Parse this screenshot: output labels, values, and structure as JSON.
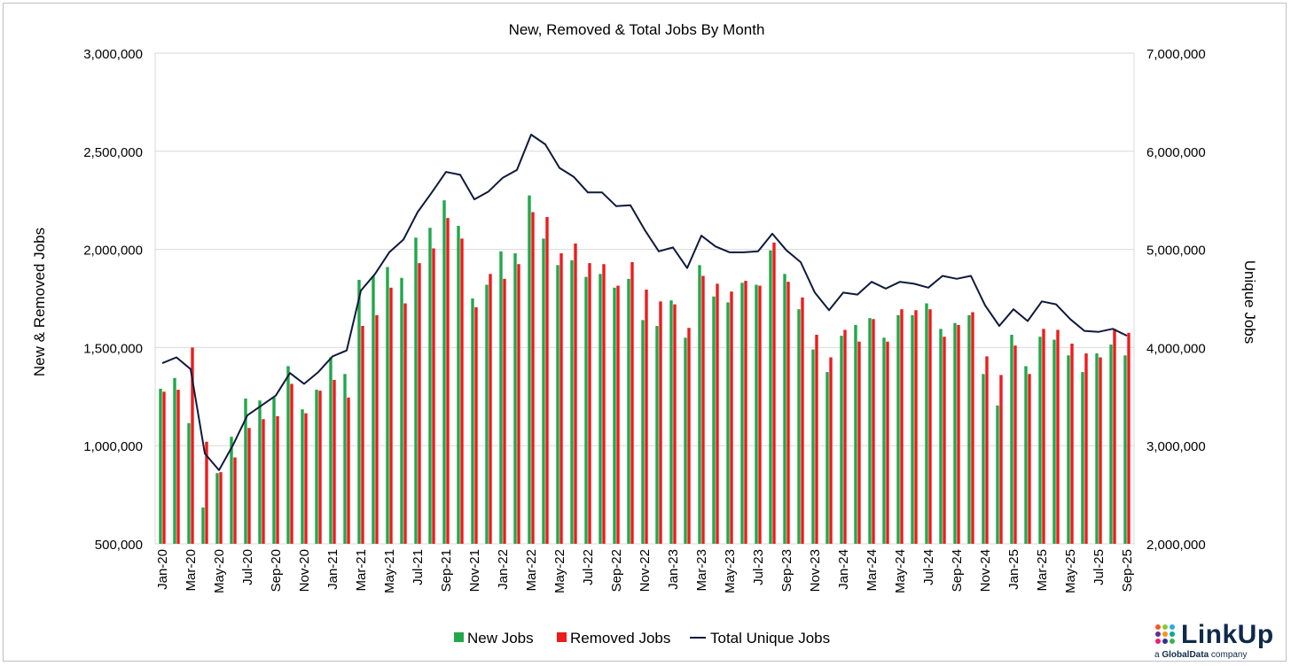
{
  "chart_data": {
    "type": "bar",
    "title": "New, Removed & Total Jobs By Month",
    "ylabel": "New & Removed Jobs",
    "y2label": "Unique Jobs",
    "ylim": [
      500000,
      3000000
    ],
    "y2lim": [
      2000000,
      7000000
    ],
    "yticks": [
      "500,000",
      "1,000,000",
      "1,500,000",
      "2,000,000",
      "2,500,000",
      "3,000,000"
    ],
    "y2ticks": [
      "2,000,000",
      "3,000,000",
      "4,000,000",
      "5,000,000",
      "6,000,000",
      "7,000,000"
    ],
    "grid": true,
    "legend_position": "bottom",
    "months": [
      "Jan-20",
      "Feb-20",
      "Mar-20",
      "Apr-20",
      "May-20",
      "Jun-20",
      "Jul-20",
      "Aug-20",
      "Sep-20",
      "Oct-20",
      "Nov-20",
      "Dec-20",
      "Jan-21",
      "Feb-21",
      "Mar-21",
      "Apr-21",
      "May-21",
      "Jun-21",
      "Jul-21",
      "Aug-21",
      "Sep-21",
      "Oct-21",
      "Nov-21",
      "Dec-21",
      "Jan-22",
      "Feb-22",
      "Mar-22",
      "Apr-22",
      "May-22",
      "Jun-22",
      "Jul-22",
      "Aug-22",
      "Sep-22",
      "Oct-22",
      "Nov-22",
      "Dec-22",
      "Jan-23",
      "Feb-23",
      "Mar-23",
      "Apr-23",
      "May-23",
      "Jun-23",
      "Jul-23",
      "Aug-23",
      "Sep-23",
      "Oct-23",
      "Nov-23",
      "Dec-23",
      "Jan-24",
      "Feb-24",
      "Mar-24",
      "Apr-24",
      "May-24",
      "Jun-24",
      "Jul-24",
      "Aug-24",
      "Sep-24",
      "Oct-24",
      "Nov-24",
      "Dec-24",
      "Jan-25",
      "Feb-25",
      "Mar-25",
      "Apr-25",
      "May-25",
      "Jun-25",
      "Jul-25",
      "Aug-25",
      "Sep-25"
    ],
    "series": [
      {
        "name": "New Jobs",
        "kind": "bar",
        "axis": "left",
        "color": "#21a84a",
        "values": [
          1290000,
          1345000,
          1115000,
          685000,
          860000,
          1045000,
          1240000,
          1230000,
          1245000,
          1405000,
          1185000,
          1285000,
          1450000,
          1365000,
          1845000,
          1865000,
          1910000,
          1855000,
          2060000,
          2110000,
          2250000,
          2120000,
          1750000,
          1820000,
          1990000,
          1980000,
          2275000,
          2055000,
          1920000,
          1945000,
          1860000,
          1875000,
          1805000,
          1850000,
          1640000,
          1610000,
          1740000,
          1550000,
          1920000,
          1760000,
          1730000,
          1830000,
          1820000,
          1995000,
          1875000,
          1695000,
          1490000,
          1375000,
          1560000,
          1615000,
          1650000,
          1550000,
          1665000,
          1665000,
          1725000,
          1595000,
          1625000,
          1665000,
          1365000,
          1205000,
          1565000,
          1405000,
          1555000,
          1540000,
          1460000,
          1375000,
          1470000,
          1515000,
          1460000
        ]
      },
      {
        "name": "Removed Jobs",
        "kind": "bar",
        "axis": "left",
        "color": "#ee1c1c",
        "values": [
          1275000,
          1285000,
          1500000,
          1020000,
          865000,
          940000,
          1090000,
          1135000,
          1150000,
          1315000,
          1165000,
          1280000,
          1335000,
          1245000,
          1610000,
          1665000,
          1805000,
          1725000,
          1930000,
          2005000,
          2160000,
          2055000,
          1705000,
          1875000,
          1850000,
          1925000,
          2190000,
          2165000,
          1980000,
          2030000,
          1930000,
          1925000,
          1815000,
          1935000,
          1795000,
          1735000,
          1720000,
          1600000,
          1865000,
          1825000,
          1785000,
          1840000,
          1815000,
          2035000,
          1835000,
          1755000,
          1565000,
          1450000,
          1590000,
          1530000,
          1645000,
          1530000,
          1695000,
          1690000,
          1695000,
          1555000,
          1615000,
          1680000,
          1455000,
          1360000,
          1510000,
          1365000,
          1595000,
          1590000,
          1520000,
          1470000,
          1450000,
          1595000,
          1575000
        ]
      },
      {
        "name": "Total Unique Jobs",
        "kind": "line",
        "axis": "right",
        "color": "#0f1a3c",
        "values": [
          3840000,
          3900000,
          3780000,
          2920000,
          2750000,
          3010000,
          3310000,
          3410000,
          3510000,
          3740000,
          3630000,
          3750000,
          3910000,
          3970000,
          4580000,
          4750000,
          4970000,
          5100000,
          5380000,
          5580000,
          5790000,
          5760000,
          5510000,
          5590000,
          5730000,
          5810000,
          6170000,
          6070000,
          5830000,
          5740000,
          5580000,
          5580000,
          5440000,
          5450000,
          5200000,
          4980000,
          5020000,
          4810000,
          5140000,
          5030000,
          4970000,
          4970000,
          4980000,
          5160000,
          4990000,
          4870000,
          4560000,
          4380000,
          4560000,
          4540000,
          4670000,
          4600000,
          4670000,
          4650000,
          4610000,
          4730000,
          4700000,
          4730000,
          4430000,
          4220000,
          4390000,
          4270000,
          4470000,
          4440000,
          4290000,
          4170000,
          4160000,
          4190000,
          4120000
        ]
      }
    ]
  },
  "brand": {
    "logo_text": "LinkUp",
    "tagline_a": "a",
    "tagline_brand": "GlobalData",
    "tagline_rest": "company"
  },
  "colors": {
    "grid": "#d9d9d9",
    "axis_text": "#000000"
  }
}
